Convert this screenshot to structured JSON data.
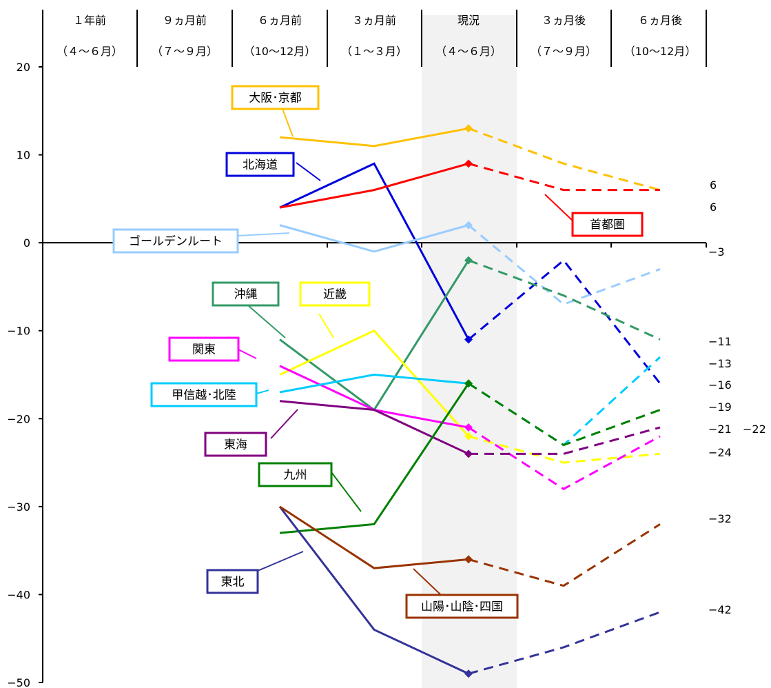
{
  "chart_data": {
    "type": "line",
    "categories": [
      {
        "line1": "１年前",
        "line2": "（４～６月）"
      },
      {
        "line1": "９ヵ月前",
        "line2": "（７～９月）"
      },
      {
        "line1": "６ヵ月前",
        "line2": "（10～12月）"
      },
      {
        "line1": "３ヵ月前",
        "line2": "（１～３月）"
      },
      {
        "line1": "現況",
        "line2": "（４～６月）"
      },
      {
        "line1": "３ヵ月後",
        "line2": "（７～９月）"
      },
      {
        "line1": "６ヵ月後",
        "line2": "（10～12月）"
      }
    ],
    "current_index": 4,
    "ylim": [
      -50,
      20
    ],
    "yticks": [
      20,
      10,
      0,
      -10,
      -20,
      -30,
      -40,
      -50
    ],
    "grid": false,
    "highlight_color": "#f2f2f2",
    "series": [
      {
        "name": "大阪･京都",
        "color": "#FFC000",
        "values": [
          null,
          null,
          12,
          11,
          13,
          9,
          6
        ],
        "end_label": "6"
      },
      {
        "name": "北海道",
        "color": "#0000DD",
        "values": [
          null,
          null,
          4,
          9,
          -11,
          -2,
          -16
        ],
        "end_label": "-16"
      },
      {
        "name": "首都圏",
        "color": "#FF0000",
        "values": [
          null,
          null,
          4,
          6,
          9,
          6,
          6
        ],
        "end_label": "6"
      },
      {
        "name": "ゴールデンルート",
        "color": "#99CCFF",
        "values": [
          null,
          null,
          2,
          -1,
          2,
          -7,
          -3
        ],
        "end_label": "-3"
      },
      {
        "name": "沖縄",
        "color": "#339966",
        "values": [
          null,
          null,
          -11,
          -19,
          -2,
          -6,
          -11
        ],
        "end_label": "-11"
      },
      {
        "name": "近畿",
        "color": "#FFFF00",
        "values": [
          null,
          null,
          -15,
          -10,
          -22,
          -25,
          -24
        ],
        "end_label": "-24"
      },
      {
        "name": "関東",
        "color": "#FF00FF",
        "values": [
          null,
          null,
          -14,
          -19,
          -21,
          -28,
          -22
        ],
        "end_label": "-22"
      },
      {
        "name": "甲信越･北陸",
        "color": "#00CCFF",
        "values": [
          null,
          null,
          -17,
          -15,
          -16,
          -23,
          -13
        ],
        "end_label": "-13"
      },
      {
        "name": "東海",
        "color": "#800080",
        "values": [
          null,
          null,
          -18,
          -19,
          -24,
          -24,
          -21
        ],
        "end_label": "-21"
      },
      {
        "name": "九州",
        "color": "#008000",
        "values": [
          null,
          null,
          -33,
          -32,
          -16,
          -23,
          -19
        ],
        "end_label": "-19"
      },
      {
        "name": "東北",
        "color": "#333399",
        "values": [
          null,
          null,
          -30,
          -44,
          -49,
          -46,
          -42
        ],
        "end_label": "-42"
      },
      {
        "name": "山陽･山陰･四国",
        "color": "#993300",
        "values": [
          null,
          null,
          -30,
          -37,
          -36,
          -39,
          -32
        ],
        "end_label": "-32"
      }
    ]
  }
}
